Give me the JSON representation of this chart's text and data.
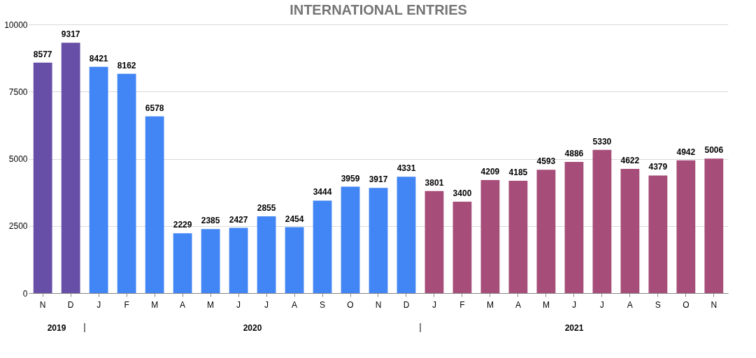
{
  "chart_data": {
    "type": "bar",
    "title": "INTERNATIONAL ENTRIES",
    "categories": [
      "N",
      "D",
      "J",
      "F",
      "M",
      "A",
      "M",
      "J",
      "J",
      "A",
      "S",
      "O",
      "N",
      "D",
      "J",
      "F",
      "M",
      "A",
      "M",
      "J",
      "J",
      "A",
      "S",
      "O",
      "N"
    ],
    "series": [
      {
        "color": "#674ea7",
        "values": [
          8577,
          9317,
          null,
          null,
          null,
          null,
          null,
          null,
          null,
          null,
          null,
          null,
          null,
          null,
          null,
          null,
          null,
          null,
          null,
          null,
          null,
          null,
          null,
          null,
          null
        ]
      },
      {
        "color": "#4285f4",
        "values": [
          null,
          null,
          8421,
          8162,
          6578,
          2229,
          2385,
          2427,
          2855,
          2454,
          3444,
          3959,
          3917,
          4331,
          null,
          null,
          null,
          null,
          null,
          null,
          null,
          null,
          null,
          null,
          null
        ]
      },
      {
        "color": "#a64d79",
        "values": [
          null,
          null,
          null,
          null,
          null,
          null,
          null,
          null,
          null,
          null,
          null,
          null,
          null,
          null,
          3801,
          3400,
          4209,
          4185,
          4593,
          4886,
          5330,
          4622,
          4379,
          4942,
          5006
        ]
      }
    ],
    "ylim": [
      0,
      10000
    ],
    "yticks": [
      0,
      2500,
      5000,
      7500,
      10000
    ],
    "grid": "y",
    "data_labels": true,
    "legend": false,
    "annotations": [
      "2019",
      "2020",
      "2021"
    ]
  }
}
